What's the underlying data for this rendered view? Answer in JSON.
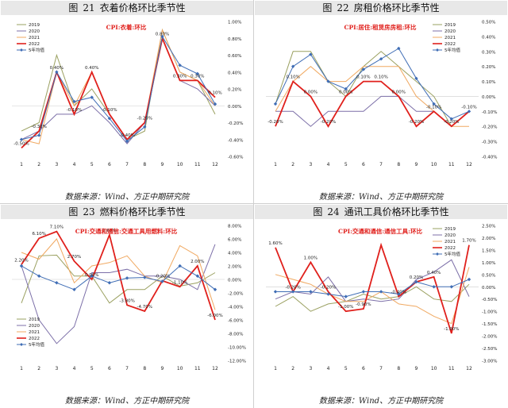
{
  "colors": {
    "s2019": "#9aa060",
    "s2020": "#7c6fa8",
    "s2021": "#f0a860",
    "s2022": "#e0201c",
    "s5y": "#3f6db5",
    "cpi_label": "#e0201c",
    "panel_bg": "#e8e8e8"
  },
  "panels": [
    {
      "fig_label": "图",
      "fig_num": "21",
      "fig_title": "衣着价格环比季节性",
      "source": "数据来源：Wind、方正中期研究院"
    },
    {
      "fig_label": "图",
      "fig_num": "22",
      "fig_title": "房租价格环比季节性",
      "source": "数据来源：Wind、方正中期研究院"
    },
    {
      "fig_label": "图",
      "fig_num": "23",
      "fig_title": "燃料价格环比季节性",
      "source": "数据来源：Wind、方正中期研究院"
    },
    {
      "fig_label": "图",
      "fig_num": "24",
      "fig_title": "通讯工具价格环比季节性",
      "source": "数据来源：Wind、方正中期研究院"
    }
  ],
  "chart_data": [
    {
      "type": "line",
      "title": "CPI:衣着:环比",
      "x": [
        1,
        2,
        3,
        4,
        5,
        6,
        7,
        8,
        9,
        10,
        11,
        12
      ],
      "ylim": [
        -0.6,
        1.0
      ],
      "yticks": [
        -0.6,
        -0.4,
        -0.2,
        0.0,
        0.2,
        0.4,
        0.6,
        0.8,
        1.0
      ],
      "ytick_labels": [
        "-0.60%",
        "-0.40%",
        "-0.20%",
        "0.00%",
        "0.20%",
        "0.40%",
        "0.60%",
        "0.80%",
        "1.00%"
      ],
      "legend_position": "top-left",
      "series": [
        {
          "name": "2019",
          "key": "s2019",
          "values": [
            -0.3,
            -0.2,
            0.6,
            0.0,
            0.2,
            -0.1,
            -0.4,
            -0.3,
            0.9,
            0.4,
            0.3,
            -0.1
          ]
        },
        {
          "name": "2020",
          "key": "s2020",
          "values": [
            -0.4,
            -0.3,
            -0.1,
            -0.1,
            0.0,
            -0.2,
            -0.45,
            -0.2,
            0.8,
            0.3,
            0.2,
            0.0
          ]
        },
        {
          "name": "2021",
          "key": "s2021",
          "values": [
            -0.4,
            -0.45,
            0.4,
            0.0,
            0.4,
            -0.1,
            -0.4,
            -0.2,
            0.9,
            0.4,
            0.3,
            0.0
          ]
        },
        {
          "name": "2022",
          "key": "s2022",
          "values": [
            -0.5,
            -0.3,
            0.4,
            -0.1,
            0.4,
            -0.1,
            -0.4,
            -0.2,
            0.8,
            0.3,
            0.3,
            0.1
          ],
          "bold": true
        },
        {
          "name": "5年均值",
          "key": "s5y",
          "markers": true,
          "values": [
            -0.4,
            -0.35,
            0.4,
            0.05,
            0.1,
            -0.15,
            -0.42,
            -0.25,
            0.82,
            0.48,
            0.38,
            0.02
          ]
        }
      ],
      "data_labels": [
        {
          "text": "-0.50%",
          "x": 1,
          "y": -0.5
        },
        {
          "text": "-0.30%",
          "x": 2,
          "y": -0.3
        },
        {
          "text": "0.40%",
          "x": 3,
          "y": 0.4
        },
        {
          "text": "-0.10%",
          "x": 4,
          "y": -0.1
        },
        {
          "text": "0.40%",
          "x": 5,
          "y": 0.4
        },
        {
          "text": "-0.10%",
          "x": 6,
          "y": -0.1
        },
        {
          "text": "-0.40%",
          "x": 7,
          "y": -0.4
        },
        {
          "text": "-0.20%",
          "x": 8,
          "y": -0.2
        },
        {
          "text": "0.80%",
          "x": 9,
          "y": 0.8
        },
        {
          "text": "0.30%",
          "x": 10,
          "y": 0.3
        },
        {
          "text": "0.30%",
          "x": 11,
          "y": 0.3
        },
        {
          "text": "0.10%",
          "x": 12,
          "y": 0.1
        }
      ]
    },
    {
      "type": "line",
      "title": "CPI:居住:租赁房房租:环比",
      "x": [
        1,
        2,
        3,
        4,
        5,
        6,
        7,
        8,
        9,
        10,
        11,
        12
      ],
      "ylim": [
        -0.4,
        0.5
      ],
      "yticks": [
        -0.4,
        -0.3,
        -0.2,
        -0.1,
        0.0,
        0.1,
        0.2,
        0.3,
        0.4,
        0.5
      ],
      "ytick_labels": [
        "-0.40%",
        "-0.30%",
        "-0.20%",
        "-0.10%",
        "0.00%",
        "0.10%",
        "0.20%",
        "0.30%",
        "0.40%",
        "0.50%"
      ],
      "legend_position": "top-right",
      "series": [
        {
          "name": "2019",
          "key": "s2019",
          "values": [
            -0.05,
            0.3,
            0.3,
            0.1,
            0.0,
            0.2,
            0.3,
            0.2,
            0.1,
            0.0,
            -0.2,
            -0.1
          ]
        },
        {
          "name": "2020",
          "key": "s2020",
          "values": [
            -0.1,
            -0.1,
            -0.2,
            -0.1,
            -0.1,
            -0.1,
            0.0,
            0.0,
            -0.1,
            -0.1,
            -0.2,
            -0.1
          ]
        },
        {
          "name": "2021",
          "key": "s2021",
          "values": [
            -0.1,
            0.1,
            0.2,
            0.1,
            0.1,
            0.2,
            0.2,
            0.2,
            0.0,
            -0.1,
            -0.2,
            -0.2
          ]
        },
        {
          "name": "2022",
          "key": "s2022",
          "values": [
            -0.2,
            0.1,
            0.0,
            -0.2,
            0.0,
            0.1,
            0.1,
            0.0,
            -0.2,
            -0.1,
            -0.2,
            -0.1
          ],
          "bold": true
        },
        {
          "name": "5年均值",
          "key": "s5y",
          "markers": true,
          "values": [
            -0.05,
            0.2,
            0.28,
            0.1,
            0.05,
            0.18,
            0.25,
            0.32,
            0.12,
            -0.05,
            -0.15,
            -0.1
          ]
        }
      ],
      "data_labels": [
        {
          "text": "-0.20%",
          "x": 1,
          "y": -0.2
        },
        {
          "text": "0.10%",
          "x": 2,
          "y": 0.1
        },
        {
          "text": "0.00%",
          "x": 3,
          "y": 0.0
        },
        {
          "text": "-0.20%",
          "x": 4,
          "y": -0.2
        },
        {
          "text": "0.00%",
          "x": 5,
          "y": 0.0
        },
        {
          "text": "0.10%",
          "x": 6,
          "y": 0.1
        },
        {
          "text": "0.10%",
          "x": 7,
          "y": 0.1
        },
        {
          "text": "0.00%",
          "x": 8,
          "y": 0.0
        },
        {
          "text": "-0.20%",
          "x": 9,
          "y": -0.2
        },
        {
          "text": "-0.10%",
          "x": 10,
          "y": -0.1
        },
        {
          "text": "-0.20%",
          "x": 11,
          "y": -0.2
        },
        {
          "text": "-0.10%",
          "x": 12,
          "y": -0.1
        }
      ]
    },
    {
      "type": "line",
      "title": "CPI:交通和通信:交通工具用燃料:环比",
      "x": [
        1,
        2,
        3,
        4,
        5,
        6,
        7,
        8,
        9,
        10,
        11,
        12
      ],
      "ylim": [
        -12.0,
        8.0
      ],
      "yticks": [
        -12,
        -10,
        -8,
        -6,
        -4,
        -2,
        0,
        2,
        4,
        6,
        8
      ],
      "ytick_labels": [
        "-12.00%",
        "-10.00%",
        "-8.00%",
        "-6.00%",
        "-4.00%",
        "-2.00%",
        "0.00%",
        "2.00%",
        "4.00%",
        "6.00%",
        "8.00%"
      ],
      "legend_position": "bottom-left",
      "series": [
        {
          "name": "2019",
          "key": "s2019",
          "values": [
            -3.5,
            3.5,
            3.6,
            0.5,
            0.5,
            -3.5,
            -1.5,
            -1.5,
            0.5,
            -1.0,
            -0.5,
            1.0
          ]
        },
        {
          "name": "2020",
          "key": "s2020",
          "values": [
            2.0,
            -6.0,
            -9.5,
            -7.0,
            1.0,
            1.0,
            1.5,
            0.5,
            0.5,
            0.0,
            -1.5,
            5.2
          ]
        },
        {
          "name": "2021",
          "key": "s2021",
          "values": [
            4.0,
            3.0,
            6.0,
            -0.5,
            2.0,
            2.5,
            3.5,
            0.5,
            -0.5,
            5.0,
            3.5,
            -4.5
          ]
        },
        {
          "name": "2022",
          "key": "s2022",
          "values": [
            2.2,
            6.1,
            7.1,
            2.7,
            0.0,
            6.6,
            -3.8,
            -4.7,
            -0.2,
            -1.1,
            2.0,
            -6.0
          ],
          "bold": true
        },
        {
          "name": "5年均值",
          "key": "s5y",
          "markers": true,
          "values": [
            2.0,
            0.5,
            -0.5,
            -1.5,
            0.5,
            -0.5,
            0.2,
            0.3,
            -0.3,
            2.0,
            0.5,
            -1.5
          ]
        }
      ],
      "data_labels": [
        {
          "text": "2.20%",
          "x": 1,
          "y": 2.2
        },
        {
          "text": "6.10%",
          "x": 2,
          "y": 6.1
        },
        {
          "text": "7.10%",
          "x": 3,
          "y": 7.1
        },
        {
          "text": "2.70%",
          "x": 4,
          "y": 2.7
        },
        {
          "text": "0.00%",
          "x": 5,
          "y": 0.0
        },
        {
          "text": "6.60%",
          "x": 6,
          "y": 6.6
        },
        {
          "text": "-3.80%",
          "x": 7,
          "y": -3.8
        },
        {
          "text": "-4.70%",
          "x": 8,
          "y": -4.7
        },
        {
          "text": "-0.20%",
          "x": 9,
          "y": -0.2
        },
        {
          "text": "-1.10%",
          "x": 10,
          "y": -1.1
        },
        {
          "text": "2.00%",
          "x": 11,
          "y": 2.0
        },
        {
          "text": "-6.00%",
          "x": 12,
          "y": -6.0
        }
      ]
    },
    {
      "type": "line",
      "title": "CPI:交通和通信:通信工具:环比",
      "x": [
        1,
        2,
        3,
        4,
        5,
        6,
        7,
        8,
        9,
        10,
        11,
        12
      ],
      "ylim": [
        -3.0,
        2.5
      ],
      "yticks": [
        -3.0,
        -2.5,
        -2.0,
        -1.5,
        -1.0,
        -0.5,
        0.0,
        0.5,
        1.0,
        1.5,
        2.0,
        2.5
      ],
      "ytick_labels": [
        "-3.00%",
        "-2.50%",
        "-2.00%",
        "-1.50%",
        "-1.00%",
        "-0.50%",
        "0.00%",
        "0.50%",
        "1.00%",
        "1.50%",
        "2.00%",
        "2.50%"
      ],
      "legend_position": "top-right",
      "series": [
        {
          "name": "2019",
          "key": "s2019",
          "values": [
            -0.8,
            -0.4,
            -1.0,
            -0.7,
            -0.6,
            -0.3,
            -0.5,
            -0.4,
            0.0,
            -0.5,
            -0.6,
            0.1
          ]
        },
        {
          "name": "2020",
          "key": "s2020",
          "values": [
            -0.5,
            -0.2,
            -0.3,
            0.4,
            -0.6,
            -0.5,
            -0.6,
            -0.5,
            0.3,
            0.6,
            1.1,
            -0.4
          ]
        },
        {
          "name": "2021",
          "key": "s2021",
          "values": [
            0.5,
            0.3,
            0.1,
            -0.3,
            -0.6,
            -0.6,
            -0.2,
            -0.7,
            -0.8,
            -1.2,
            -1.5,
            0.8
          ]
        },
        {
          "name": "2022",
          "key": "s2022",
          "values": [
            1.6,
            -0.2,
            1.0,
            -0.2,
            -1.0,
            -0.9,
            1.7,
            -0.4,
            0.2,
            0.4,
            -1.9,
            1.7
          ],
          "bold": true
        },
        {
          "name": "5年均值",
          "key": "s5y",
          "markers": true,
          "values": [
            -0.2,
            -0.2,
            -0.2,
            -0.3,
            -0.4,
            -0.2,
            -0.2,
            -0.3,
            0.2,
            0.0,
            0.0,
            0.3
          ]
        }
      ],
      "data_labels": [
        {
          "text": "1.60%",
          "x": 1,
          "y": 1.6
        },
        {
          "text": "-0.20%",
          "x": 2,
          "y": -0.2
        },
        {
          "text": "1.00%",
          "x": 3,
          "y": 1.0
        },
        {
          "text": "-0.20%",
          "x": 4,
          "y": -0.2
        },
        {
          "text": "-1.00%",
          "x": 5,
          "y": -1.0
        },
        {
          "text": "-0.90%",
          "x": 6,
          "y": -0.9
        },
        {
          "text": "-0.40%",
          "x": 8,
          "y": -0.4
        },
        {
          "text": "0.20%",
          "x": 9,
          "y": 0.2
        },
        {
          "text": "0.40%",
          "x": 10,
          "y": 0.4
        },
        {
          "text": "-1.90%",
          "x": 11,
          "y": -1.9
        },
        {
          "text": "1.70%",
          "x": 12,
          "y": 1.7
        }
      ]
    }
  ]
}
